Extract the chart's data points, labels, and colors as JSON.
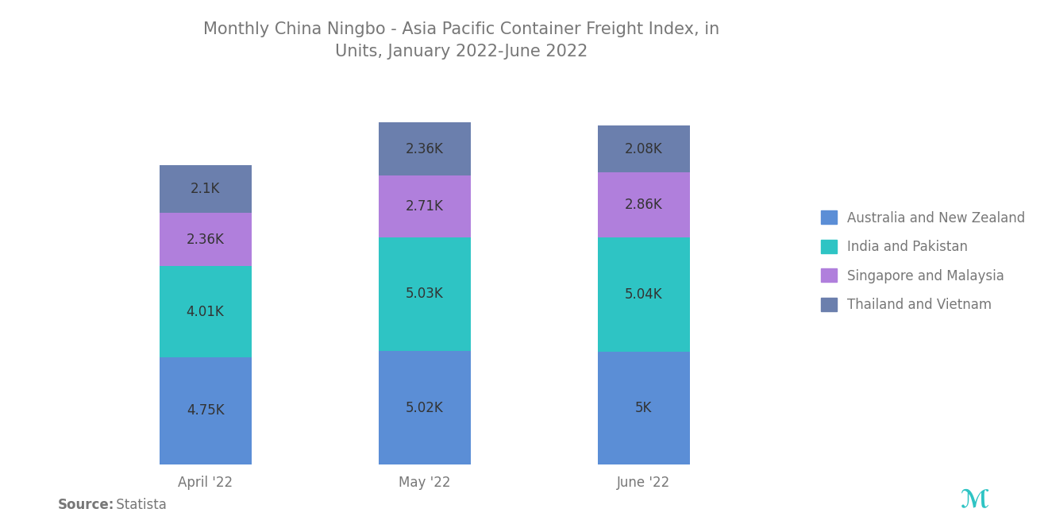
{
  "title": "Monthly China Ningbo - Asia Pacific Container Freight Index, in\nUnits, January 2022-June 2022",
  "categories": [
    "April '22",
    "May '22",
    "June '22"
  ],
  "series": {
    "Australia and New Zealand": [
      4750,
      5020,
      5000
    ],
    "India and Pakistan": [
      4010,
      5030,
      5040
    ],
    "Singapore and Malaysia": [
      2360,
      2710,
      2860
    ],
    "Thailand and Vietnam": [
      2100,
      2360,
      2080
    ]
  },
  "colors": {
    "Australia and New Zealand": "#5b8ed6",
    "India and Pakistan": "#2ec4c4",
    "Singapore and Malaysia": "#b07fdc",
    "Thailand and Vietnam": "#6b7fad"
  },
  "bar_labels": {
    "Australia and New Zealand": [
      "4.75K",
      "5.02K",
      "5K"
    ],
    "India and Pakistan": [
      "4.01K",
      "5.03K",
      "5.04K"
    ],
    "Singapore and Malaysia": [
      "2.36K",
      "2.71K",
      "2.86K"
    ],
    "Thailand and Vietnam": [
      "2.1K",
      "2.36K",
      "2.08K"
    ]
  },
  "series_order": [
    "Australia and New Zealand",
    "India and Pakistan",
    "Singapore and Malaysia",
    "Thailand and Vietnam"
  ],
  "title_fontsize": 15,
  "label_fontsize": 12,
  "legend_fontsize": 12,
  "tick_fontsize": 12,
  "source_fontsize": 12,
  "bar_width": 0.42,
  "background_color": "#ffffff",
  "title_color": "#777777",
  "bar_label_color": "#333333",
  "legend_text_color": "#777777",
  "tick_color": "#777777"
}
